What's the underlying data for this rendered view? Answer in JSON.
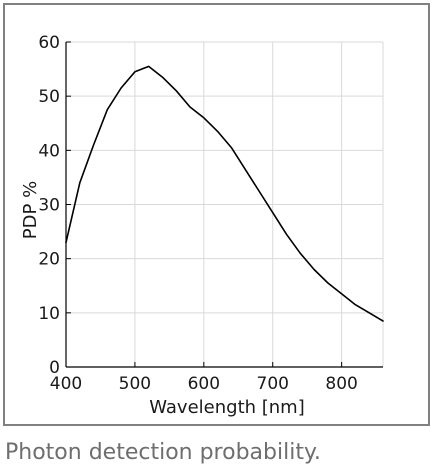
{
  "caption": "Photon detection probability.",
  "chart_data": {
    "type": "line",
    "title": "",
    "xlabel": "Wavelength [nm]",
    "ylabel": "PDP %",
    "xlim": [
      400,
      860
    ],
    "ylim": [
      0,
      60
    ],
    "xticks": [
      400,
      500,
      600,
      700,
      800
    ],
    "yticks": [
      0,
      10,
      20,
      30,
      40,
      50,
      60
    ],
    "grid": true,
    "line_color": "#000000",
    "grid_color": "#d9d9d9",
    "series": [
      {
        "x": [
          400,
          420,
          440,
          460,
          480,
          500,
          520,
          540,
          560,
          580,
          600,
          620,
          640,
          660,
          680,
          700,
          720,
          740,
          760,
          780,
          800,
          820,
          840,
          860
        ],
        "y": [
          23,
          34,
          41,
          47.5,
          51.5,
          54.5,
          55.5,
          53.5,
          51,
          48,
          46,
          43.5,
          40.5,
          36.5,
          32.5,
          28.5,
          24.5,
          21,
          18,
          15.5,
          13.5,
          11.5,
          10,
          8.5
        ]
      }
    ]
  }
}
